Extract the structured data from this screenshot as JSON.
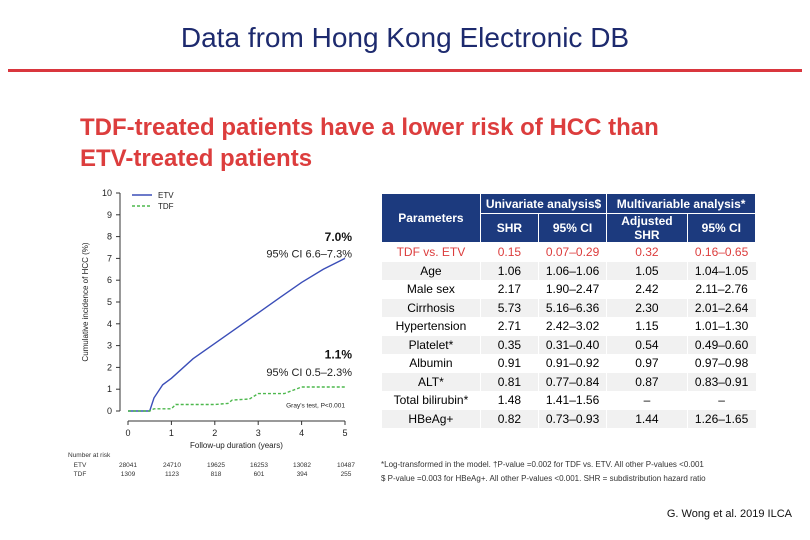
{
  "slide": {
    "title": "Data from Hong Kong Electronic DB",
    "headline_line1": "TDF-treated patients have a lower risk of HCC than",
    "headline_line2": "ETV-treated patients",
    "citation": "G. Wong et al. 2019 ILCA"
  },
  "colors": {
    "etv": "#3b4eb8",
    "tdf": "#4db84d",
    "accent_red": "#dc3d3d",
    "header_navy": "#1c3a7e",
    "title_navy": "#1d2a6e"
  },
  "chart_data": {
    "type": "line",
    "xlabel": "Follow-up duration (years)",
    "ylabel": "Cumulative incidence of HCC (%)",
    "xlim": [
      0,
      5
    ],
    "ylim": [
      0,
      10
    ],
    "x_ticks": [
      "0",
      "1",
      "2",
      "3",
      "4",
      "5"
    ],
    "y_ticks": [
      "0",
      "1",
      "2",
      "3",
      "4",
      "5",
      "6",
      "7",
      "8",
      "9",
      "10"
    ],
    "series": [
      {
        "name": "ETV",
        "style": "solid",
        "x": [
          0,
          0.5,
          0.6,
          0.8,
          1.0,
          1.5,
          2.0,
          2.5,
          3.0,
          3.5,
          4.0,
          4.5,
          5.0
        ],
        "y": [
          0,
          0,
          0.6,
          1.2,
          1.5,
          2.4,
          3.1,
          3.8,
          4.5,
          5.2,
          5.9,
          6.5,
          7.0
        ]
      },
      {
        "name": "TDF",
        "style": "dashed",
        "x": [
          0,
          0.5,
          0.6,
          1.0,
          1.1,
          1.4,
          2.0,
          2.3,
          2.4,
          2.8,
          3.0,
          3.6,
          4.0,
          4.5,
          5.0
        ],
        "y": [
          0,
          0,
          0.1,
          0.1,
          0.3,
          0.3,
          0.3,
          0.35,
          0.5,
          0.55,
          0.8,
          0.8,
          1.1,
          1.1,
          1.1
        ]
      }
    ],
    "annotations": {
      "etv_value": "7.0%",
      "etv_ci": "95% CI 6.6–7.3%",
      "tdf_value": "1.1%",
      "tdf_ci": "95% CI 0.5–2.3%",
      "test_label": "Gray's test, P<0.001"
    },
    "legend": "top-left",
    "grid": false,
    "risk_table": {
      "title": "Number at risk",
      "rows": [
        {
          "label": "ETV",
          "values": [
            "28041",
            "24710",
            "19625",
            "16253",
            "13082",
            "10487"
          ]
        },
        {
          "label": "TDF",
          "values": [
            "1309",
            "1123",
            "818",
            "601",
            "394",
            "255"
          ]
        }
      ]
    }
  },
  "table": {
    "group_headers": [
      "Univariate analysis$",
      "Multivariable analysis*"
    ],
    "param_header": "Parameters",
    "sub_headers": [
      "SHR",
      "95% CI",
      "Adjusted SHR",
      "95% CI"
    ],
    "rows": [
      {
        "param": "TDF vs. ETV",
        "shr": "0.15",
        "ci": "0.07–0.29",
        "adj": "0.32",
        "adj_ci": "0.16–0.65"
      },
      {
        "param": "Age",
        "shr": "1.06",
        "ci": "1.06–1.06",
        "adj": "1.05",
        "adj_ci": "1.04–1.05"
      },
      {
        "param": "Male sex",
        "shr": "2.17",
        "ci": "1.90–2.47",
        "adj": "2.42",
        "adj_ci": "2.11–2.76"
      },
      {
        "param": "Cirrhosis",
        "shr": "5.73",
        "ci": "5.16–6.36",
        "adj": "2.30",
        "adj_ci": "2.01–2.64"
      },
      {
        "param": "Hypertension",
        "shr": "2.71",
        "ci": "2.42–3.02",
        "adj": "1.15",
        "adj_ci": "1.01–1.30"
      },
      {
        "param": "Platelet*",
        "shr": "0.35",
        "ci": "0.31–0.40",
        "adj": "0.54",
        "adj_ci": "0.49–0.60"
      },
      {
        "param": "Albumin",
        "shr": "0.91",
        "ci": "0.91–0.92",
        "adj": "0.97",
        "adj_ci": "0.97–0.98"
      },
      {
        "param": "ALT*",
        "shr": "0.81",
        "ci": "0.77–0.84",
        "adj": "0.87",
        "adj_ci": "0.83–0.91"
      },
      {
        "param": "Total bilirubin*",
        "shr": "1.48",
        "ci": "1.41–1.56",
        "adj": "–",
        "adj_ci": "–"
      },
      {
        "param": "HBeAg+",
        "shr": "0.82",
        "ci": "0.73–0.93",
        "adj": "1.44",
        "adj_ci": "1.26–1.65"
      }
    ],
    "footnote1": "*Log-transformed in the model. †P-value =0.002 for TDF vs. ETV. All other P-values <0.001",
    "footnote2": "$ P-value =0.003 for HBeAg+. All other P-values <0.001. SHR = subdistribution hazard ratio"
  }
}
